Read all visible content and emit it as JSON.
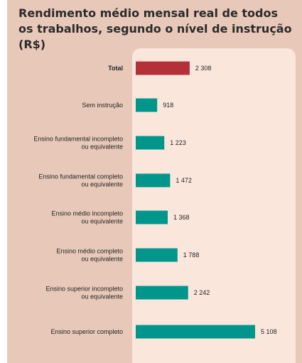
{
  "chart_data": {
    "type": "bar",
    "orientation": "horizontal",
    "title": "Rendimento médio mensal real de todos os trabalhos, segundo o nível de instrução (R$)",
    "title_lines": [
      "Rendimento médio mensal real de todos",
      "os trabalhos, segundo o nível de instrução (R$)"
    ],
    "categories": [
      [
        "Total"
      ],
      [
        "Sem instrução"
      ],
      [
        "Ensino fundamental incompleto",
        "ou equivalente"
      ],
      [
        "Ensino fundamental completo",
        "ou equivalente"
      ],
      [
        "Ensino médio incompleto",
        "ou equivalente"
      ],
      [
        "Ensino médio completo",
        "ou equivalente"
      ],
      [
        "Ensino superior incompleto",
        "ou equivalente"
      ],
      [
        "Ensino superior completo"
      ]
    ],
    "values": [
      2308,
      918,
      1223,
      1472,
      1368,
      1788,
      2242,
      5108
    ],
    "value_labels": [
      "2 308",
      "918",
      "1 223",
      "1 472",
      "1 368",
      "1 788",
      "2 242",
      "5 108"
    ],
    "colors": [
      "#b5313a",
      "#00968c",
      "#00968c",
      "#00968c",
      "#00968c",
      "#00968c",
      "#00968c",
      "#00968c"
    ],
    "highlight_index": 0,
    "xlim": [
      0,
      5108
    ],
    "grid": false
  }
}
